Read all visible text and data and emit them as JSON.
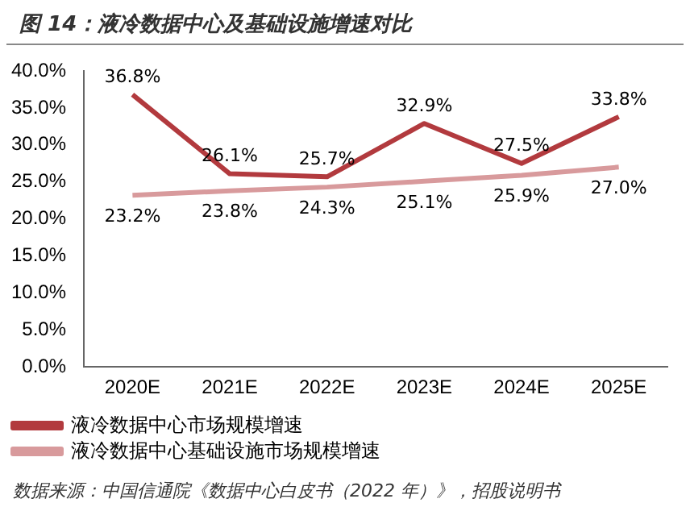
{
  "chart_data": {
    "type": "line",
    "title": "图 14：液冷数据中心及基础设施增速对比",
    "categories": [
      "2020E",
      "2021E",
      "2022E",
      "2023E",
      "2024E",
      "2025E"
    ],
    "series": [
      {
        "name": "液冷数据中心市场规模增速",
        "color": "#b23a3e",
        "values": [
          36.8,
          26.1,
          25.7,
          32.9,
          27.5,
          33.8
        ],
        "value_labels": [
          "36.8%",
          "26.1%",
          "25.7%",
          "32.9%",
          "27.5%",
          "33.8%"
        ]
      },
      {
        "name": "液冷数据中心基础设施市场规模增速",
        "color": "#d89a9c",
        "values": [
          23.2,
          23.8,
          24.3,
          25.1,
          25.9,
          27.0
        ],
        "value_labels": [
          "23.2%",
          "23.8%",
          "24.3%",
          "25.1%",
          "25.9%",
          "27.0%"
        ]
      }
    ],
    "ylim": [
      0,
      40
    ],
    "yticks": [
      {
        "value": 0,
        "label": "0.0%"
      },
      {
        "value": 5,
        "label": "5.0%"
      },
      {
        "value": 10,
        "label": "10.0%"
      },
      {
        "value": 15,
        "label": "15.0%"
      },
      {
        "value": 20,
        "label": "20.0%"
      },
      {
        "value": 25,
        "label": "25.0%"
      },
      {
        "value": 30,
        "label": "30.0%"
      },
      {
        "value": 35,
        "label": "35.0%"
      },
      {
        "value": 40,
        "label": "40.0%"
      }
    ],
    "grid": false,
    "legend": "bottom",
    "marker": "none",
    "line_style": "solid",
    "annotations": [
      "数据来源：中国信通院《数据中心白皮书（2022 年）》，招股说明书"
    ]
  }
}
